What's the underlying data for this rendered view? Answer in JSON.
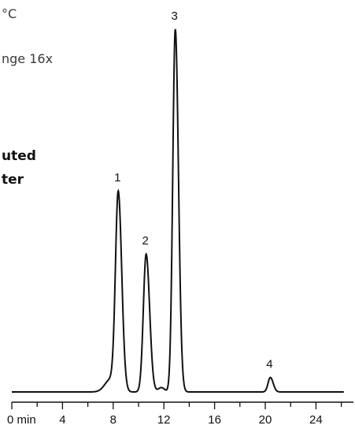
{
  "text_fragments": {
    "line1": "°C",
    "line2": "nge 16x",
    "line3": "uted",
    "line4": "ter"
  },
  "chart_data": {
    "type": "line",
    "title": "",
    "xlabel": "",
    "ylabel": "",
    "x_unit": "min",
    "xlim": [
      0,
      26
    ],
    "x_ticks": [
      0,
      4,
      8,
      12,
      16,
      20,
      24
    ],
    "x_tick_labels": [
      "0 min",
      "4",
      "8",
      "12",
      "16",
      "20",
      "24"
    ],
    "baseline": 0,
    "peaks": [
      {
        "label": "1",
        "retention_time": 8.4,
        "height": 0.54
      },
      {
        "label": "2",
        "retention_time": 10.6,
        "height": 0.38
      },
      {
        "label": "3",
        "retention_time": 12.9,
        "height": 1.0
      },
      {
        "label": "4",
        "retention_time": 20.4,
        "height": 0.04
      }
    ],
    "grid": false,
    "legend": "none"
  }
}
